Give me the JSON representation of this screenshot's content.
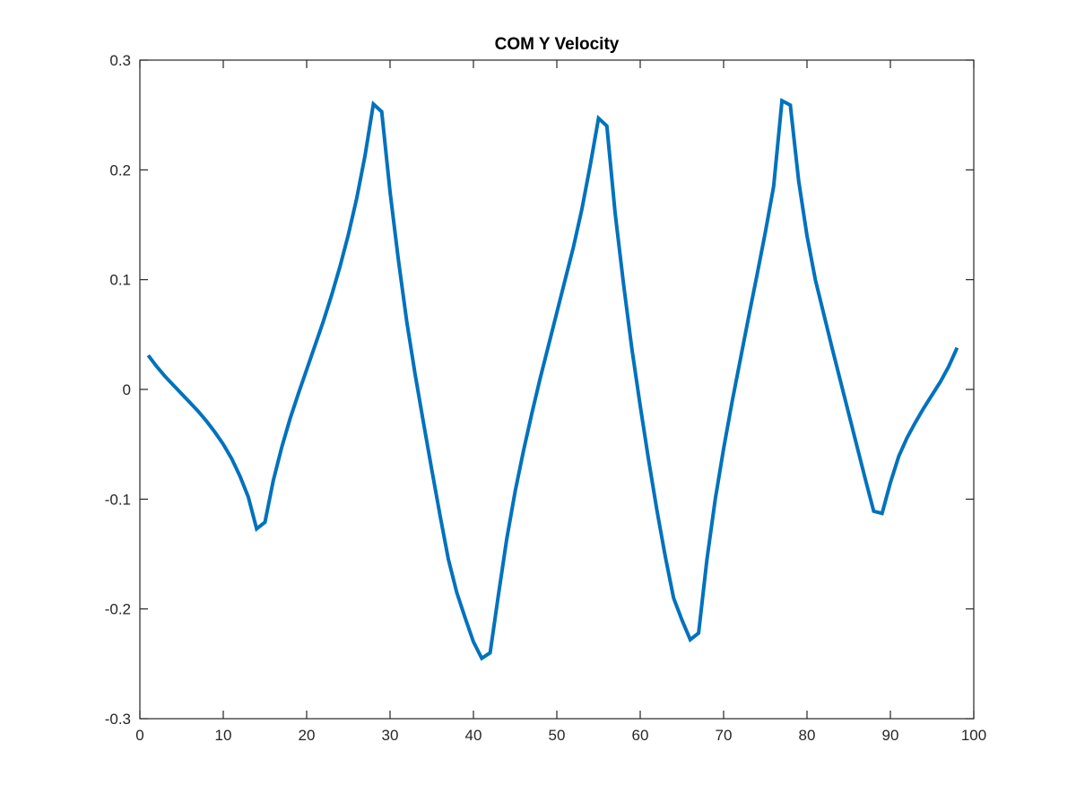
{
  "chart_data": {
    "type": "line",
    "title": "COM Y Velocity",
    "xlabel": "",
    "ylabel": "",
    "xlim": [
      0,
      100
    ],
    "ylim": [
      -0.3,
      0.3
    ],
    "grid": false,
    "box": true,
    "line_color": "#0072BD",
    "xticks": [
      0,
      10,
      20,
      30,
      40,
      50,
      60,
      70,
      80,
      90,
      100
    ],
    "xtick_labels": [
      "0",
      "10",
      "20",
      "30",
      "40",
      "50",
      "60",
      "70",
      "80",
      "90",
      "100"
    ],
    "yticks": [
      -0.3,
      -0.2,
      -0.1,
      0,
      0.1,
      0.2,
      0.3
    ],
    "ytick_labels": [
      "-0.3",
      "-0.2",
      "-0.1",
      "0",
      "0.1",
      "0.2",
      "0.3"
    ],
    "series": [
      {
        "x": [
          1,
          2,
          3,
          4,
          5,
          6,
          7,
          8,
          9,
          10,
          11,
          12,
          13,
          14,
          15,
          16,
          17,
          18,
          19,
          20,
          21,
          22,
          23,
          24,
          25,
          26,
          27,
          28,
          29,
          30,
          31,
          32,
          33,
          34,
          35,
          36,
          37,
          38,
          39,
          40,
          41,
          42,
          43,
          44,
          45,
          46,
          47,
          48,
          49,
          50,
          51,
          52,
          53,
          54,
          55,
          56,
          57,
          58,
          59,
          60,
          61,
          62,
          63,
          64,
          65,
          66,
          67,
          68,
          69,
          70,
          71,
          72,
          73,
          74,
          75,
          76,
          77,
          78,
          79,
          80,
          81,
          82,
          83,
          84,
          85,
          86,
          87,
          88,
          89,
          90,
          91,
          92,
          93,
          94,
          95,
          96,
          97,
          98
        ],
        "y": [
          0.031,
          0.021,
          0.012,
          0.004,
          -0.004,
          -0.012,
          -0.02,
          -0.029,
          -0.039,
          -0.05,
          -0.063,
          -0.079,
          -0.098,
          -0.127,
          -0.121,
          -0.083,
          -0.053,
          -0.027,
          -0.004,
          0.018,
          0.04,
          0.062,
          0.086,
          0.112,
          0.141,
          0.174,
          0.213,
          0.26,
          0.253,
          0.18,
          0.118,
          0.062,
          0.014,
          -0.03,
          -0.073,
          -0.115,
          -0.155,
          -0.185,
          -0.208,
          -0.23,
          -0.245,
          -0.24,
          -0.187,
          -0.136,
          -0.093,
          -0.056,
          -0.022,
          0.01,
          0.04,
          0.07,
          0.1,
          0.13,
          0.164,
          0.204,
          0.247,
          0.24,
          0.16,
          0.096,
          0.037,
          -0.015,
          -0.064,
          -0.11,
          -0.152,
          -0.19,
          -0.21,
          -0.228,
          -0.222,
          -0.155,
          -0.1,
          -0.054,
          -0.012,
          0.027,
          0.066,
          0.104,
          0.143,
          0.185,
          0.263,
          0.259,
          0.19,
          0.14,
          0.1,
          0.069,
          0.038,
          0.008,
          -0.022,
          -0.052,
          -0.082,
          -0.111,
          -0.113,
          -0.085,
          -0.061,
          -0.044,
          -0.03,
          -0.017,
          -0.005,
          0.007,
          0.021,
          0.038
        ]
      }
    ]
  }
}
